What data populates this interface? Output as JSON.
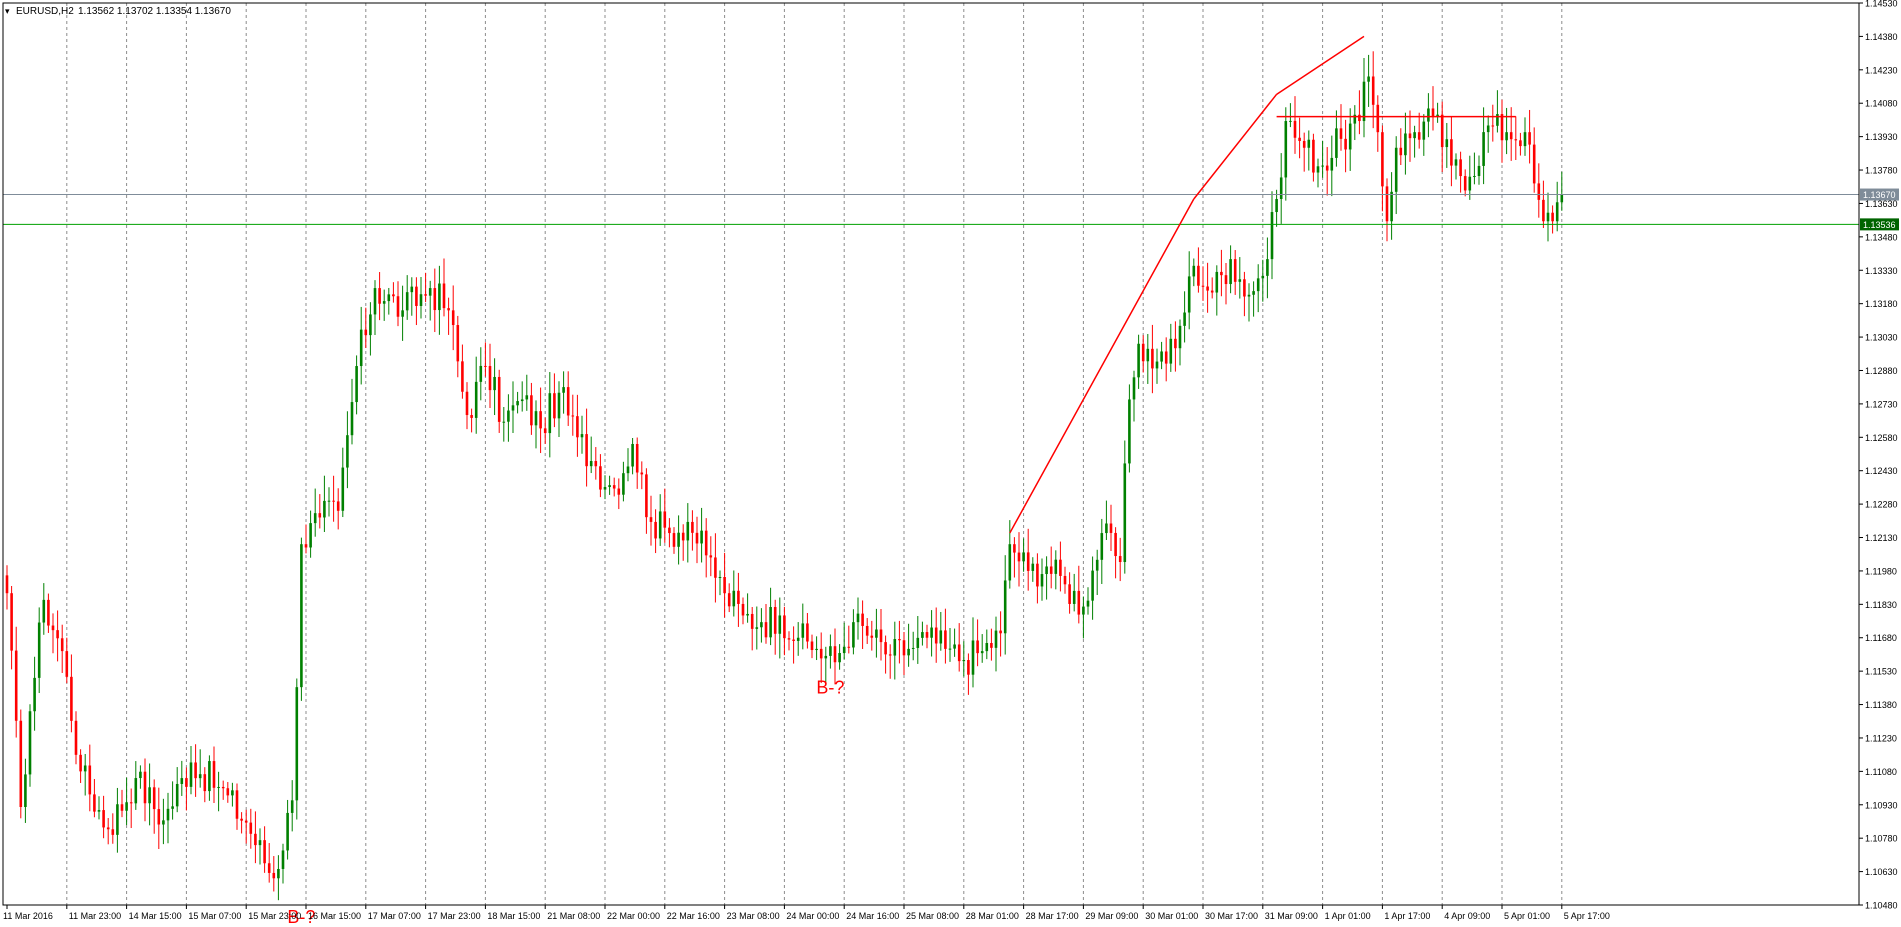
{
  "header": {
    "menu_glyph": "▾",
    "symbol": "EURUSD,H2",
    "ohlc": "1.13562 1.13702 1.13354 1.13670"
  },
  "colors": {
    "bull": "#008000",
    "bear": "#ff0000",
    "grid": "#8c8c8c",
    "axis": "#000000",
    "annotation": "#ff0000",
    "bid_line": "#7f8c99",
    "level_line": "#00a000",
    "bid_tag": "#7f8c99",
    "level_tag": "#006400"
  },
  "chart_data": {
    "type": "candlestick",
    "symbol": "EURUSD",
    "timeframe": "H2",
    "ylim": [
      1.1048,
      1.1453
    ],
    "y_ticks": [
      "1.14530",
      "1.14380",
      "1.14230",
      "1.14080",
      "1.13930",
      "1.13780",
      "1.13630",
      "1.13480",
      "1.13330",
      "1.13180",
      "1.13030",
      "1.12880",
      "1.12730",
      "1.12580",
      "1.12430",
      "1.12280",
      "1.12130",
      "1.11980",
      "1.11830",
      "1.11680",
      "1.11530",
      "1.11380",
      "1.11230",
      "1.11080",
      "1.10930",
      "1.10780",
      "1.10630",
      "1.10480"
    ],
    "x_ticks": [
      "11 Mar 2016",
      "11 Mar 23:00",
      "14 Mar 15:00",
      "15 Mar 07:00",
      "15 Mar 23:00",
      "16 Mar 15:00",
      "17 Mar 07:00",
      "17 Mar 23:00",
      "18 Mar 15:00",
      "21 Mar 08:00",
      "22 Mar 00:00",
      "22 Mar 16:00",
      "23 Mar 08:00",
      "24 Mar 00:00",
      "24 Mar 16:00",
      "25 Mar 08:00",
      "28 Mar 01:00",
      "28 Mar 17:00",
      "29 Mar 09:00",
      "30 Mar 01:00",
      "30 Mar 17:00",
      "31 Mar 09:00",
      "1 Apr 01:00",
      "1 Apr 17:00",
      "4 Apr 09:00",
      "5 Apr 01:00",
      "5 Apr 17:00"
    ],
    "anchors": [
      [
        0,
        1.1188
      ],
      [
        3,
        1.1092
      ],
      [
        5,
        1.1135
      ],
      [
        8,
        1.1185
      ],
      [
        12,
        1.1162
      ],
      [
        16,
        1.1108
      ],
      [
        22,
        1.1082
      ],
      [
        28,
        1.1105
      ],
      [
        34,
        1.1086
      ],
      [
        40,
        1.1112
      ],
      [
        46,
        1.1101
      ],
      [
        52,
        1.1085
      ],
      [
        58,
        1.106
      ],
      [
        62,
        1.1095
      ],
      [
        64,
        1.121
      ],
      [
        68,
        1.1222
      ],
      [
        72,
        1.1225
      ],
      [
        76,
        1.129
      ],
      [
        80,
        1.1325
      ],
      [
        86,
        1.1315
      ],
      [
        92,
        1.1325
      ],
      [
        96,
        1.1315
      ],
      [
        100,
        1.1268
      ],
      [
        104,
        1.129
      ],
      [
        108,
        1.1265
      ],
      [
        112,
        1.1275
      ],
      [
        116,
        1.1262
      ],
      [
        120,
        1.1278
      ],
      [
        124,
        1.1258
      ],
      [
        128,
        1.1245
      ],
      [
        132,
        1.1235
      ],
      [
        136,
        1.1255
      ],
      [
        140,
        1.122
      ],
      [
        144,
        1.1215
      ],
      [
        148,
        1.122
      ],
      [
        152,
        1.1205
      ],
      [
        156,
        1.1188
      ],
      [
        160,
        1.1178
      ],
      [
        164,
        1.1175
      ],
      [
        168,
        1.1178
      ],
      [
        172,
        1.1168
      ],
      [
        176,
        1.1163
      ],
      [
        180,
        1.1157
      ],
      [
        184,
        1.1175
      ],
      [
        188,
        1.1168
      ],
      [
        192,
        1.116
      ],
      [
        196,
        1.1163
      ],
      [
        200,
        1.1168
      ],
      [
        204,
        1.1163
      ],
      [
        208,
        1.1158
      ],
      [
        212,
        1.1162
      ],
      [
        216,
        1.117
      ],
      [
        218,
        1.121
      ],
      [
        222,
        1.1198
      ],
      [
        226,
        1.12
      ],
      [
        230,
        1.1192
      ],
      [
        234,
        1.1182
      ],
      [
        238,
        1.1215
      ],
      [
        242,
        1.1202
      ],
      [
        244,
        1.1275
      ],
      [
        246,
        1.13
      ],
      [
        250,
        1.1292
      ],
      [
        254,
        1.1298
      ],
      [
        258,
        1.1335
      ],
      [
        262,
        1.1323
      ],
      [
        266,
        1.1338
      ],
      [
        270,
        1.1322
      ],
      [
        274,
        1.1338
      ],
      [
        276,
        1.1365
      ],
      [
        278,
        1.14
      ],
      [
        282,
        1.1388
      ],
      [
        286,
        1.138
      ],
      [
        290,
        1.1392
      ],
      [
        294,
        1.14
      ],
      [
        296,
        1.142
      ],
      [
        298,
        1.1395
      ],
      [
        300,
        1.1355
      ],
      [
        302,
        1.1388
      ],
      [
        306,
        1.1395
      ],
      [
        310,
        1.1402
      ],
      [
        314,
        1.138
      ],
      [
        318,
        1.1375
      ],
      [
        322,
        1.1398
      ],
      [
        326,
        1.1395
      ],
      [
        330,
        1.1395
      ],
      [
        332,
        1.1372
      ],
      [
        334,
        1.1355
      ],
      [
        336,
        1.1355
      ],
      [
        338,
        1.1367
      ]
    ],
    "last_close": 1.1367,
    "horizontal_lines": [
      {
        "price": 1.1367,
        "label": "1.13670",
        "role": "bid"
      },
      {
        "price": 1.13536,
        "label": "1.13536",
        "role": "level"
      }
    ],
    "trendlines": [
      {
        "x1": 218,
        "y1": 1.1215,
        "x2": 258,
        "y2": 1.1365
      },
      {
        "x1": 258,
        "y1": 1.1365,
        "x2": 276,
        "y2": 1.1412
      },
      {
        "x1": 276,
        "y1": 1.1412,
        "x2": 295,
        "y2": 1.1438
      },
      {
        "x1": 276,
        "y1": 1.1402,
        "x2": 328,
        "y2": 1.1402
      }
    ],
    "annotations": [
      {
        "text": "B-?",
        "bar": 179,
        "price": 1.1143
      },
      {
        "text": "B-?",
        "bar": 64,
        "price": 1.104
      }
    ]
  }
}
